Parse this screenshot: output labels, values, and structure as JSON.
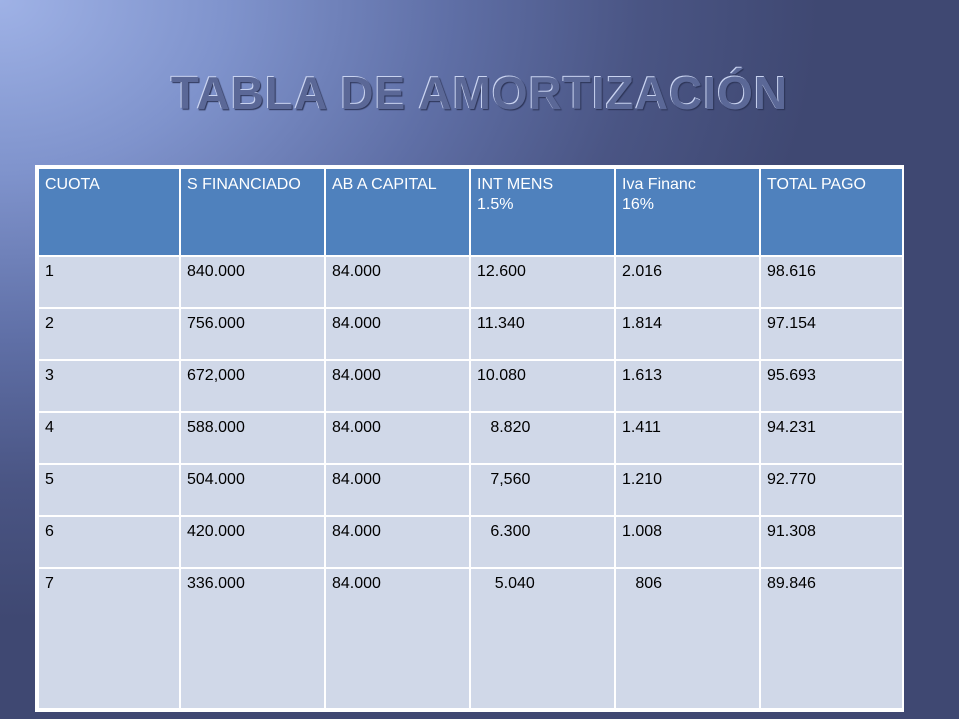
{
  "title": "TABLA DE AMORTIZACIÓN",
  "table": {
    "headers": [
      "CUOTA",
      "S FINANCIADO",
      "AB A CAPITAL",
      "INT MENS\n1.5%",
      "Iva  Financ\n16%",
      "TOTAL PAGO"
    ],
    "rows": [
      [
        "1",
        "840.000",
        "84.000",
        "12.600",
        "2.016",
        "98.616"
      ],
      [
        "2",
        "756.000",
        "84.000",
        "11.340",
        "1.814",
        "97.154"
      ],
      [
        "3",
        "672,000",
        "84.000",
        "10.080",
        "1.613",
        "95.693"
      ],
      [
        "4",
        "588.000",
        "84.000",
        "   8.820",
        "1.411",
        "94.231"
      ],
      [
        "5",
        "504.000",
        "84.000",
        "   7,560",
        "1.210",
        "92.770"
      ],
      [
        "6",
        "420.000",
        "84.000",
        "   6.300",
        "1.008",
        "91.308"
      ],
      [
        "7",
        "336.000",
        "84.000",
        "    5.040",
        "   806",
        "89.846"
      ]
    ]
  },
  "colors": {
    "header_bg": "#4f81bd",
    "row_bg": "#d0d8e8",
    "border": "#ffffff"
  }
}
